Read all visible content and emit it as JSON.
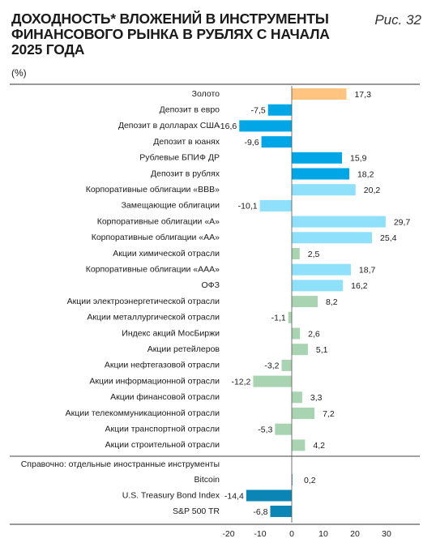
{
  "header": {
    "title_lines": [
      "ДОХОДНОСТЬ* ВЛОЖЕНИЙ В ИНСТРУМЕНТЫ",
      "ФИНАНСОВОГО РЫНКА В РУБЛЯХ С НАЧАЛА",
      "2025 ГОДА"
    ],
    "figure": "Рис. 32",
    "unit": "(%)"
  },
  "reference_label": "Справочно: отдельные иностранные инструменты",
  "colors": {
    "gold": "#ffc580",
    "deposit": "#00a6e6",
    "fund": "#00a6e6",
    "bond": "#8fe0fb",
    "equity": "#a8d4b1",
    "foreign": "#0a85b5"
  },
  "chart_data": {
    "type": "bar",
    "orientation": "horizontal",
    "xlim": [
      -20,
      30
    ],
    "xticks": [
      -20,
      -10,
      0,
      10,
      20,
      30
    ],
    "categories": [
      "Золото",
      "Депозит в евро",
      "Депозит в долларах США",
      "Депозит в юанях",
      "Рублевые БПИФ ДР",
      "Депозит в рублях",
      "Корпоративные облигации «ВВВ»",
      "Замещающие облигации",
      "Корпоративные облигации «А»",
      "Корпоративные облигации «АА»",
      "Акции химической отрасли",
      "Корпоративные облигации «ААА»",
      "ОФЗ",
      "Акции электроэнергетической отрасли",
      "Акции металлургической отрасли",
      "Индекс акций МосБиржи",
      "Акции ретейлеров",
      "Акции нефтегазовой отрасли",
      "Акции информационной отрасли",
      "Акции финансовой отрасли",
      "Акции телекоммуникационной отрасли",
      "Акции транспортной отрасли",
      "Акции строительной отрасли"
    ],
    "values": [
      17.3,
      -7.5,
      -16.6,
      -9.6,
      15.9,
      18.2,
      20.2,
      -10.1,
      29.7,
      25.4,
      2.5,
      18.7,
      16.2,
      8.2,
      -1.1,
      2.6,
      5.1,
      -3.2,
      -12.2,
      3.3,
      7.2,
      -5.3,
      4.2
    ],
    "value_labels": [
      "17,3",
      "-7,5",
      "-16,6",
      "-9,6",
      "15,9",
      "18,2",
      "20,2",
      "-10,1",
      "29,7",
      "25,4",
      "2,5",
      "18,7",
      "16,2",
      "8,2",
      "-1,1",
      "2,6",
      "5,1",
      "-3,2",
      "-12,2",
      "3,3",
      "7,2",
      "-5,3",
      "4,2"
    ],
    "groups": [
      "gold",
      "deposit",
      "deposit",
      "deposit",
      "fund",
      "deposit",
      "bond",
      "bond",
      "bond",
      "bond",
      "equity",
      "bond",
      "bond",
      "equity",
      "equity",
      "equity",
      "equity",
      "equity",
      "equity",
      "equity",
      "equity",
      "equity",
      "equity"
    ],
    "reference_categories": [
      "Bitcoin",
      "U.S. Treasury Bond Index",
      "S&P 500 TR"
    ],
    "reference_values": [
      0.2,
      -14.4,
      -6.8
    ],
    "reference_value_labels": [
      "0,2",
      "-14,4",
      "-6,8"
    ]
  }
}
